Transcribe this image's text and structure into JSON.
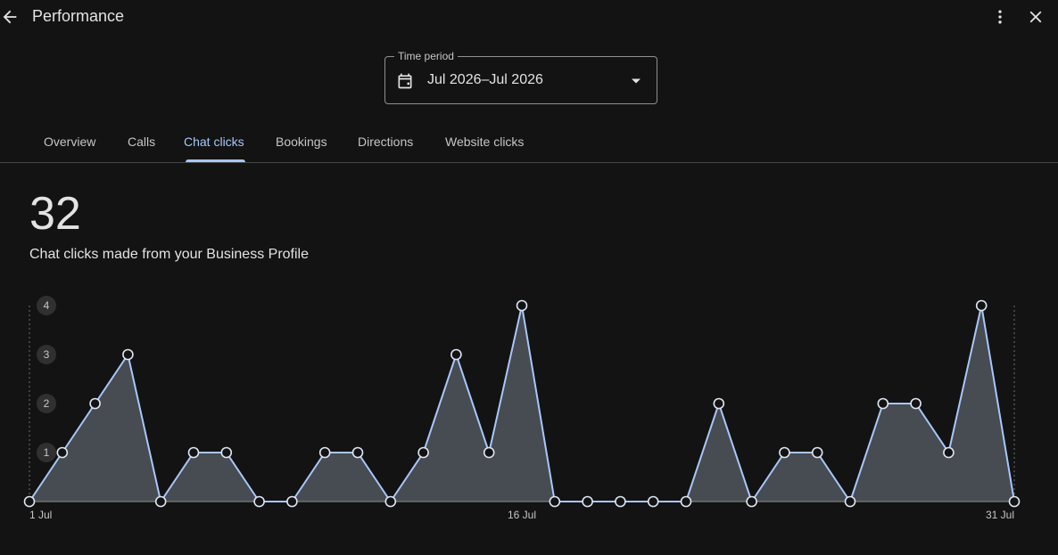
{
  "header": {
    "title": "Performance",
    "back_icon": "arrow-back-icon",
    "more_icon": "more-vert-icon",
    "close_icon": "close-icon"
  },
  "time_period": {
    "label": "Time period",
    "value": "Jul 2026–Jul 2026",
    "icon": "calendar-icon"
  },
  "tabs": [
    {
      "label": "Overview"
    },
    {
      "label": "Calls"
    },
    {
      "label": "Chat clicks",
      "active": true
    },
    {
      "label": "Bookings"
    },
    {
      "label": "Directions"
    },
    {
      "label": "Website clicks"
    }
  ],
  "summary": {
    "total": "32",
    "caption": "Chat clicks made from your Business Profile"
  },
  "colors": {
    "accent": "#a8c7fa",
    "area_fill": "#474b52",
    "background": "#131313"
  },
  "chart_data": {
    "type": "area",
    "x": [
      "1 Jul",
      "2 Jul",
      "3 Jul",
      "4 Jul",
      "5 Jul",
      "6 Jul",
      "7 Jul",
      "8 Jul",
      "9 Jul",
      "10 Jul",
      "11 Jul",
      "12 Jul",
      "13 Jul",
      "14 Jul",
      "15 Jul",
      "16 Jul",
      "17 Jul",
      "18 Jul",
      "19 Jul",
      "20 Jul",
      "21 Jul",
      "22 Jul",
      "23 Jul",
      "24 Jul",
      "25 Jul",
      "26 Jul",
      "27 Jul",
      "28 Jul",
      "29 Jul",
      "30 Jul",
      "31 Jul"
    ],
    "values": [
      0,
      1,
      2,
      3,
      0,
      1,
      1,
      0,
      0,
      1,
      1,
      0,
      1,
      3,
      1,
      4,
      0,
      0,
      0,
      0,
      0,
      2,
      0,
      1,
      1,
      0,
      2,
      2,
      1,
      4,
      0
    ],
    "x_tick_labels": [
      "1 Jul",
      "16 Jul",
      "31 Jul"
    ],
    "y_tick_labels": [
      "1",
      "2",
      "3",
      "4"
    ],
    "ylim": [
      0,
      4
    ],
    "grid": false
  }
}
